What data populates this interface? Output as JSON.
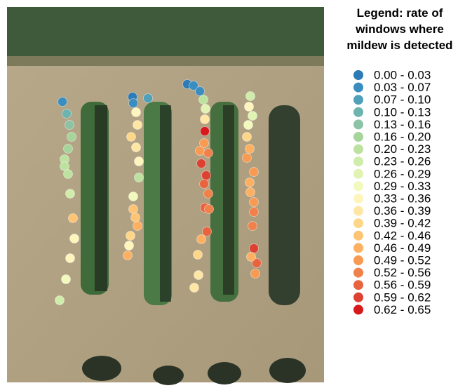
{
  "legend": {
    "title": [
      "Legend: rate of",
      "windows where",
      "mildew is detected"
    ],
    "items": [
      {
        "label": "0.00 - 0.03",
        "color": "#2c7bb6"
      },
      {
        "label": "0.03 - 0.07",
        "color": "#3a8dbf"
      },
      {
        "label": "0.07 - 0.10",
        "color": "#4fa0b8"
      },
      {
        "label": "0.10 - 0.13",
        "color": "#6db3ae"
      },
      {
        "label": "0.13 - 0.16",
        "color": "#8cc3a4"
      },
      {
        "label": "0.16 - 0.20",
        "color": "#a6d49a"
      },
      {
        "label": "0.20 - 0.23",
        "color": "#bde2a0"
      },
      {
        "label": "0.23 - 0.26",
        "color": "#d0ecaa"
      },
      {
        "label": "0.26 - 0.29",
        "color": "#e1f3b2"
      },
      {
        "label": "0.29 - 0.33",
        "color": "#f1f9bc"
      },
      {
        "label": "0.33 - 0.36",
        "color": "#fef5bd"
      },
      {
        "label": "0.36 - 0.39",
        "color": "#fee6a4"
      },
      {
        "label": "0.39 - 0.42",
        "color": "#fed68a"
      },
      {
        "label": "0.42 - 0.46",
        "color": "#fdc473"
      },
      {
        "label": "0.46 - 0.49",
        "color": "#fdb061"
      },
      {
        "label": "0.49 - 0.52",
        "color": "#f99a53"
      },
      {
        "label": "0.52 - 0.56",
        "color": "#f1814a"
      },
      {
        "label": "0.56 - 0.59",
        "color": "#e8643f"
      },
      {
        "label": "0.59 - 0.62",
        "color": "#dd4131"
      },
      {
        "label": "0.62 - 0.65",
        "color": "#d7191c"
      }
    ]
  }
}
